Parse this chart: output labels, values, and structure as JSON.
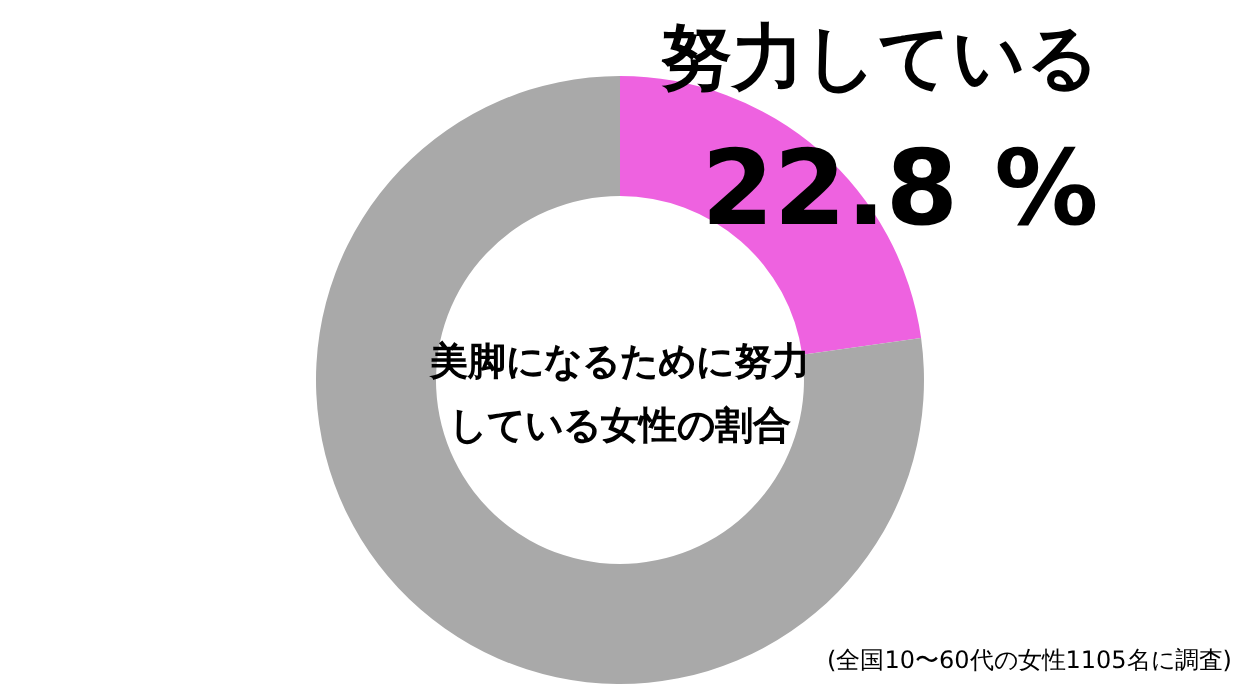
{
  "chart_data": {
    "type": "donut",
    "title": "美脚になるために努力している女性の割合",
    "categories": [
      "努力している",
      null
    ],
    "values": [
      22.8,
      77.2
    ],
    "colors": [
      "#ee62e0",
      "#a9a9a9"
    ],
    "value_labels": [
      "22.8 %",
      null
    ],
    "annotations": [
      "(全国10〜60代の女性1105名に調査)"
    ]
  }
}
